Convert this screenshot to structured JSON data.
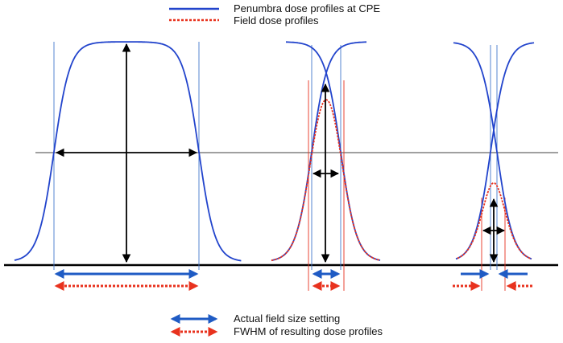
{
  "legend_top": {
    "penumbra_label": "Penumbra dose profiles at CPE",
    "field_label": "Field dose profiles",
    "penumbra_color": "#2244cc",
    "field_color": "#e8321e"
  },
  "legend_bottom": {
    "actual_size_label": "Actual field size setting",
    "fwhm_label": "FWHM of resulting dose profiles",
    "actual_color": "#1f5bc4",
    "fwhm_color": "#e8321e"
  },
  "colors": {
    "axis": "#000000",
    "half_max_line": "#000000",
    "edge_line_blue": "#4477cc",
    "edge_line_red": "#e8321e"
  }
}
